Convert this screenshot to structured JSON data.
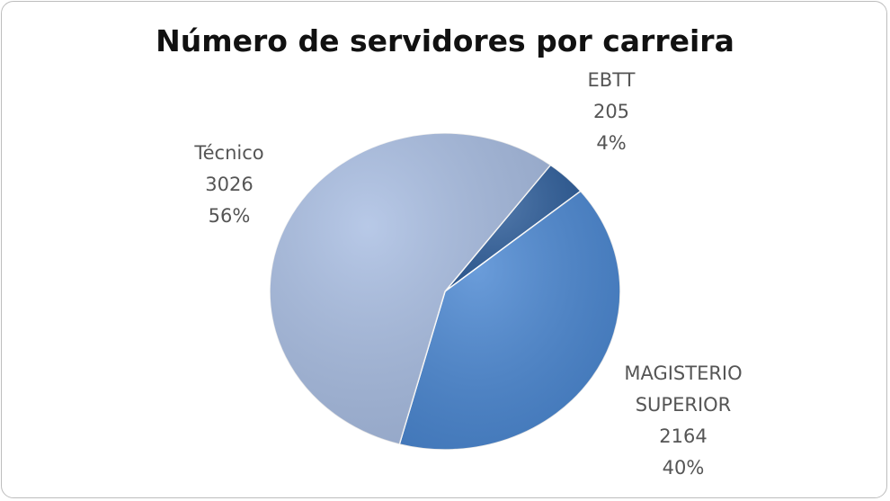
{
  "chart_data": {
    "type": "pie",
    "title": "Número de servidores por carreira",
    "categories": [
      "EBTT",
      "MAGISTERIO SUPERIOR",
      "Técnico"
    ],
    "values": [
      205,
      2164,
      3026
    ],
    "percent_labels": [
      "4%",
      "40%",
      "56%"
    ],
    "colors": [
      "#2f5f9c",
      "#4a87d2",
      "#a8bde2"
    ]
  }
}
